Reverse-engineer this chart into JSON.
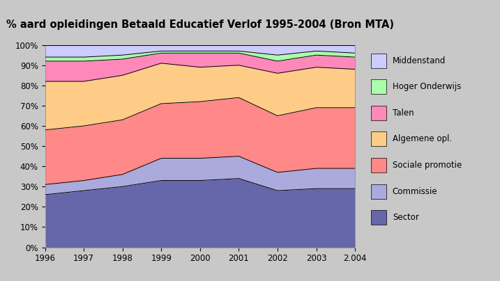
{
  "title": "% aard opleidingen Betaald Educatief Verlof 1995-2004 (Bron MTA)",
  "years": [
    "1996",
    "1997",
    "1998",
    "1999",
    "2000",
    "2001",
    "2002",
    "2003",
    "2.004"
  ],
  "series": [
    {
      "name": "Sector",
      "color": "#6666aa",
      "values": [
        26,
        28,
        30,
        33,
        33,
        34,
        28,
        29,
        29
      ]
    },
    {
      "name": "Commissie",
      "color": "#aaaadd",
      "values": [
        5,
        5,
        6,
        11,
        11,
        11,
        9,
        10,
        10
      ]
    },
    {
      "name": "Sociale promotie",
      "color": "#ff8888",
      "values": [
        27,
        27,
        27,
        27,
        28,
        29,
        28,
        30,
        30
      ]
    },
    {
      "name": "Algemene opl.",
      "color": "#ffcc88",
      "values": [
        24,
        22,
        22,
        20,
        17,
        16,
        21,
        20,
        19
      ]
    },
    {
      "name": "Talen",
      "color": "#ff88bb",
      "values": [
        10,
        10,
        8,
        5,
        7,
        6,
        6,
        6,
        6
      ]
    },
    {
      "name": "Hoger Onderwijs",
      "color": "#aaffaa",
      "values": [
        2,
        2,
        2,
        1,
        1,
        1,
        3,
        2,
        2
      ]
    },
    {
      "name": "Middenstand",
      "color": "#ccccff",
      "values": [
        6,
        6,
        5,
        3,
        3,
        3,
        5,
        3,
        4
      ]
    }
  ],
  "background_color": "#c8c8c8",
  "plot_background": "#dde4ee",
  "ylim": [
    0,
    100
  ],
  "ytick_labels": [
    "0%",
    "10%",
    "20%",
    "30%",
    "40%",
    "50%",
    "60%",
    "70%",
    "80%",
    "90%",
    "100%"
  ],
  "title_fontsize": 10.5,
  "legend_fontsize": 8.5,
  "tick_fontsize": 8.5
}
